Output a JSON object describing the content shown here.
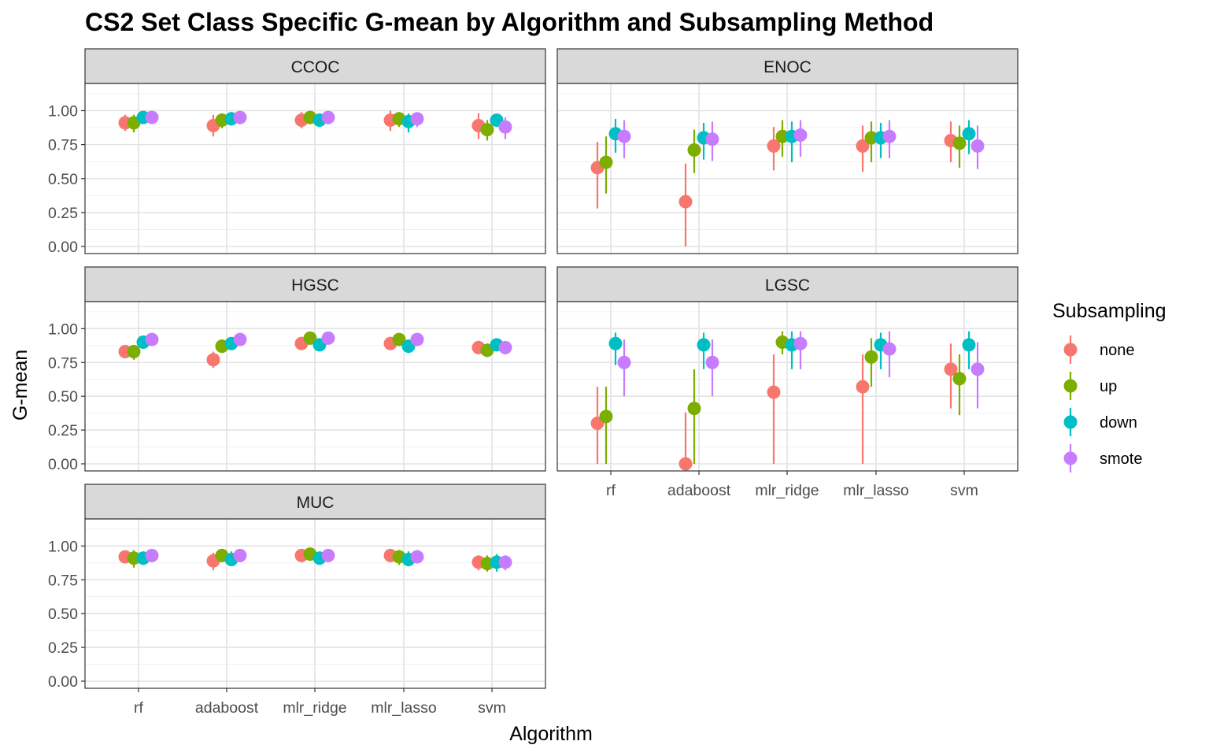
{
  "chart_data": {
    "type": "scatter",
    "title": "CS2 Set Class Specific G-mean by Algorithm and Subsampling Method",
    "xlabel": "Algorithm",
    "ylabel": "G-mean",
    "ylim": [
      0,
      1.2
    ],
    "y_ticks": [
      "0.00",
      "0.25",
      "0.50",
      "0.75",
      "1.00"
    ],
    "categories": [
      "rf",
      "adaboost",
      "mlr_ridge",
      "mlr_lasso",
      "svm"
    ],
    "grid": true,
    "legend": {
      "title": "Subsampling",
      "placement": "right",
      "entries": [
        {
          "name": "none",
          "color": "#F8766D"
        },
        {
          "name": "up",
          "color": "#7CAE00"
        },
        {
          "name": "down",
          "color": "#00BFC4"
        },
        {
          "name": "smote",
          "color": "#C77CFF"
        }
      ]
    },
    "panels": [
      {
        "label": "CCOC",
        "series": [
          {
            "name": "none",
            "values": [
              0.91,
              0.89,
              0.93,
              0.93,
              0.89
            ],
            "lower": [
              0.85,
              0.81,
              0.87,
              0.85,
              0.79
            ],
            "upper": [
              0.97,
              0.97,
              0.99,
              1.0,
              0.98
            ]
          },
          {
            "name": "up",
            "values": [
              0.91,
              0.93,
              0.95,
              0.94,
              0.86
            ],
            "lower": [
              0.84,
              0.87,
              0.9,
              0.88,
              0.78
            ],
            "upper": [
              0.97,
              0.98,
              1.0,
              0.99,
              0.93
            ]
          },
          {
            "name": "down",
            "values": [
              0.95,
              0.94,
              0.93,
              0.92,
              0.93
            ],
            "lower": [
              0.91,
              0.89,
              0.88,
              0.84,
              0.88
            ],
            "upper": [
              0.99,
              0.99,
              0.98,
              0.98,
              0.97
            ]
          },
          {
            "name": "smote",
            "values": [
              0.95,
              0.95,
              0.95,
              0.94,
              0.88
            ],
            "lower": [
              0.91,
              0.9,
              0.9,
              0.88,
              0.79
            ],
            "upper": [
              0.99,
              1.0,
              0.99,
              0.98,
              0.95
            ]
          }
        ]
      },
      {
        "label": "ENOC",
        "series": [
          {
            "name": "none",
            "values": [
              0.58,
              0.33,
              0.74,
              0.74,
              0.78
            ],
            "lower": [
              0.28,
              0.0,
              0.56,
              0.55,
              0.62
            ],
            "upper": [
              0.77,
              0.61,
              0.88,
              0.89,
              0.92
            ]
          },
          {
            "name": "up",
            "values": [
              0.62,
              0.71,
              0.81,
              0.8,
              0.76
            ],
            "lower": [
              0.39,
              0.54,
              0.66,
              0.62,
              0.58
            ],
            "upper": [
              0.81,
              0.86,
              0.93,
              0.92,
              0.89
            ]
          },
          {
            "name": "down",
            "values": [
              0.83,
              0.8,
              0.81,
              0.8,
              0.83
            ],
            "lower": [
              0.69,
              0.64,
              0.62,
              0.65,
              0.68
            ],
            "upper": [
              0.94,
              0.91,
              0.92,
              0.91,
              0.93
            ]
          },
          {
            "name": "smote",
            "values": [
              0.81,
              0.79,
              0.82,
              0.81,
              0.74
            ],
            "lower": [
              0.65,
              0.63,
              0.66,
              0.65,
              0.57
            ],
            "upper": [
              0.93,
              0.92,
              0.93,
              0.93,
              0.89
            ]
          }
        ]
      },
      {
        "label": "HGSC",
        "series": [
          {
            "name": "none",
            "values": [
              0.83,
              0.77,
              0.89,
              0.89,
              0.86
            ],
            "lower": [
              0.78,
              0.71,
              0.85,
              0.85,
              0.82
            ],
            "upper": [
              0.88,
              0.83,
              0.94,
              0.94,
              0.91
            ]
          },
          {
            "name": "up",
            "values": [
              0.83,
              0.87,
              0.93,
              0.92,
              0.84
            ],
            "lower": [
              0.77,
              0.82,
              0.89,
              0.88,
              0.79
            ],
            "upper": [
              0.88,
              0.92,
              0.97,
              0.96,
              0.89
            ]
          },
          {
            "name": "down",
            "values": [
              0.9,
              0.89,
              0.88,
              0.87,
              0.88
            ],
            "lower": [
              0.86,
              0.85,
              0.84,
              0.82,
              0.84
            ],
            "upper": [
              0.94,
              0.93,
              0.92,
              0.92,
              0.92
            ]
          },
          {
            "name": "smote",
            "values": [
              0.92,
              0.92,
              0.93,
              0.92,
              0.86
            ],
            "lower": [
              0.88,
              0.88,
              0.89,
              0.88,
              0.81
            ],
            "upper": [
              0.96,
              0.96,
              0.97,
              0.96,
              0.9
            ]
          }
        ]
      },
      {
        "label": "LGSC",
        "series": [
          {
            "name": "none",
            "values": [
              0.3,
              0.0,
              0.53,
              0.57,
              0.7
            ],
            "lower": [
              0.0,
              0.0,
              0.0,
              0.0,
              0.41
            ],
            "upper": [
              0.57,
              0.38,
              0.81,
              0.81,
              0.89
            ]
          },
          {
            "name": "up",
            "values": [
              0.35,
              0.41,
              0.9,
              0.79,
              0.63
            ],
            "lower": [
              0.0,
              0.0,
              0.81,
              0.57,
              0.36
            ],
            "upper": [
              0.57,
              0.7,
              0.98,
              0.93,
              0.81
            ]
          },
          {
            "name": "down",
            "values": [
              0.89,
              0.88,
              0.88,
              0.88,
              0.88
            ],
            "lower": [
              0.73,
              0.7,
              0.7,
              0.7,
              0.7
            ],
            "upper": [
              0.97,
              0.97,
              0.98,
              0.97,
              0.98
            ]
          },
          {
            "name": "smote",
            "values": [
              0.75,
              0.75,
              0.89,
              0.85,
              0.7
            ],
            "lower": [
              0.5,
              0.5,
              0.7,
              0.64,
              0.41
            ],
            "upper": [
              0.92,
              0.92,
              0.98,
              0.98,
              0.9
            ]
          }
        ]
      },
      {
        "label": "MUC",
        "series": [
          {
            "name": "none",
            "values": [
              0.92,
              0.89,
              0.93,
              0.93,
              0.88
            ],
            "lower": [
              0.88,
              0.82,
              0.88,
              0.88,
              0.82
            ],
            "upper": [
              0.96,
              0.95,
              0.97,
              0.97,
              0.93
            ]
          },
          {
            "name": "up",
            "values": [
              0.91,
              0.93,
              0.94,
              0.92,
              0.87
            ],
            "lower": [
              0.84,
              0.88,
              0.89,
              0.86,
              0.81
            ],
            "upper": [
              0.97,
              0.97,
              0.98,
              0.97,
              0.93
            ]
          },
          {
            "name": "down",
            "values": [
              0.91,
              0.9,
              0.91,
              0.9,
              0.88
            ],
            "lower": [
              0.86,
              0.85,
              0.86,
              0.85,
              0.81
            ],
            "upper": [
              0.96,
              0.96,
              0.96,
              0.96,
              0.94
            ]
          },
          {
            "name": "smote",
            "values": [
              0.93,
              0.93,
              0.93,
              0.92,
              0.88
            ],
            "lower": [
              0.88,
              0.88,
              0.88,
              0.87,
              0.82
            ],
            "upper": [
              0.97,
              0.97,
              0.97,
              0.97,
              0.93
            ]
          }
        ]
      }
    ]
  }
}
